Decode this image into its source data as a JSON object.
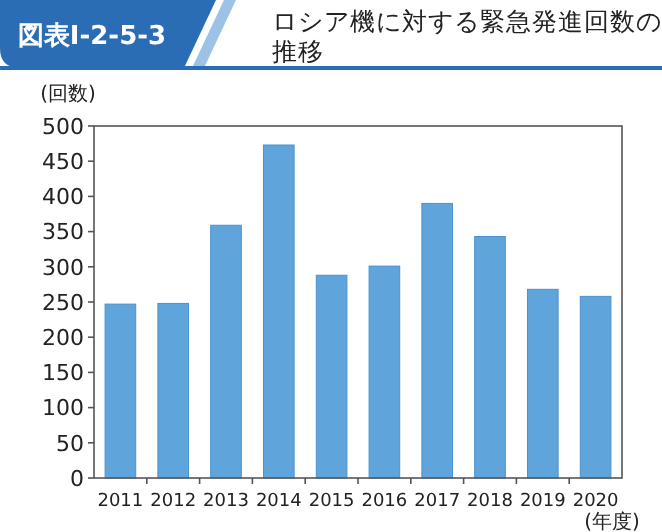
{
  "chart_data": {
    "type": "bar",
    "title": "ロシア機に対する緊急発進回数の推移",
    "annotations": [
      "図表Ⅰ-2-5-3"
    ],
    "ylabel": "(回数)",
    "xlabel": "(年度)",
    "categories": [
      "2011",
      "2012",
      "2013",
      "2014",
      "2015",
      "2016",
      "2017",
      "2018",
      "2019",
      "2020"
    ],
    "values": [
      247,
      248,
      359,
      473,
      288,
      301,
      390,
      343,
      268,
      258
    ],
    "color": "#5fa5dc",
    "ylim": [
      0,
      500
    ],
    "yticks": [
      0,
      50,
      100,
      150,
      200,
      250,
      300,
      350,
      400,
      450,
      500
    ],
    "grid": false
  }
}
